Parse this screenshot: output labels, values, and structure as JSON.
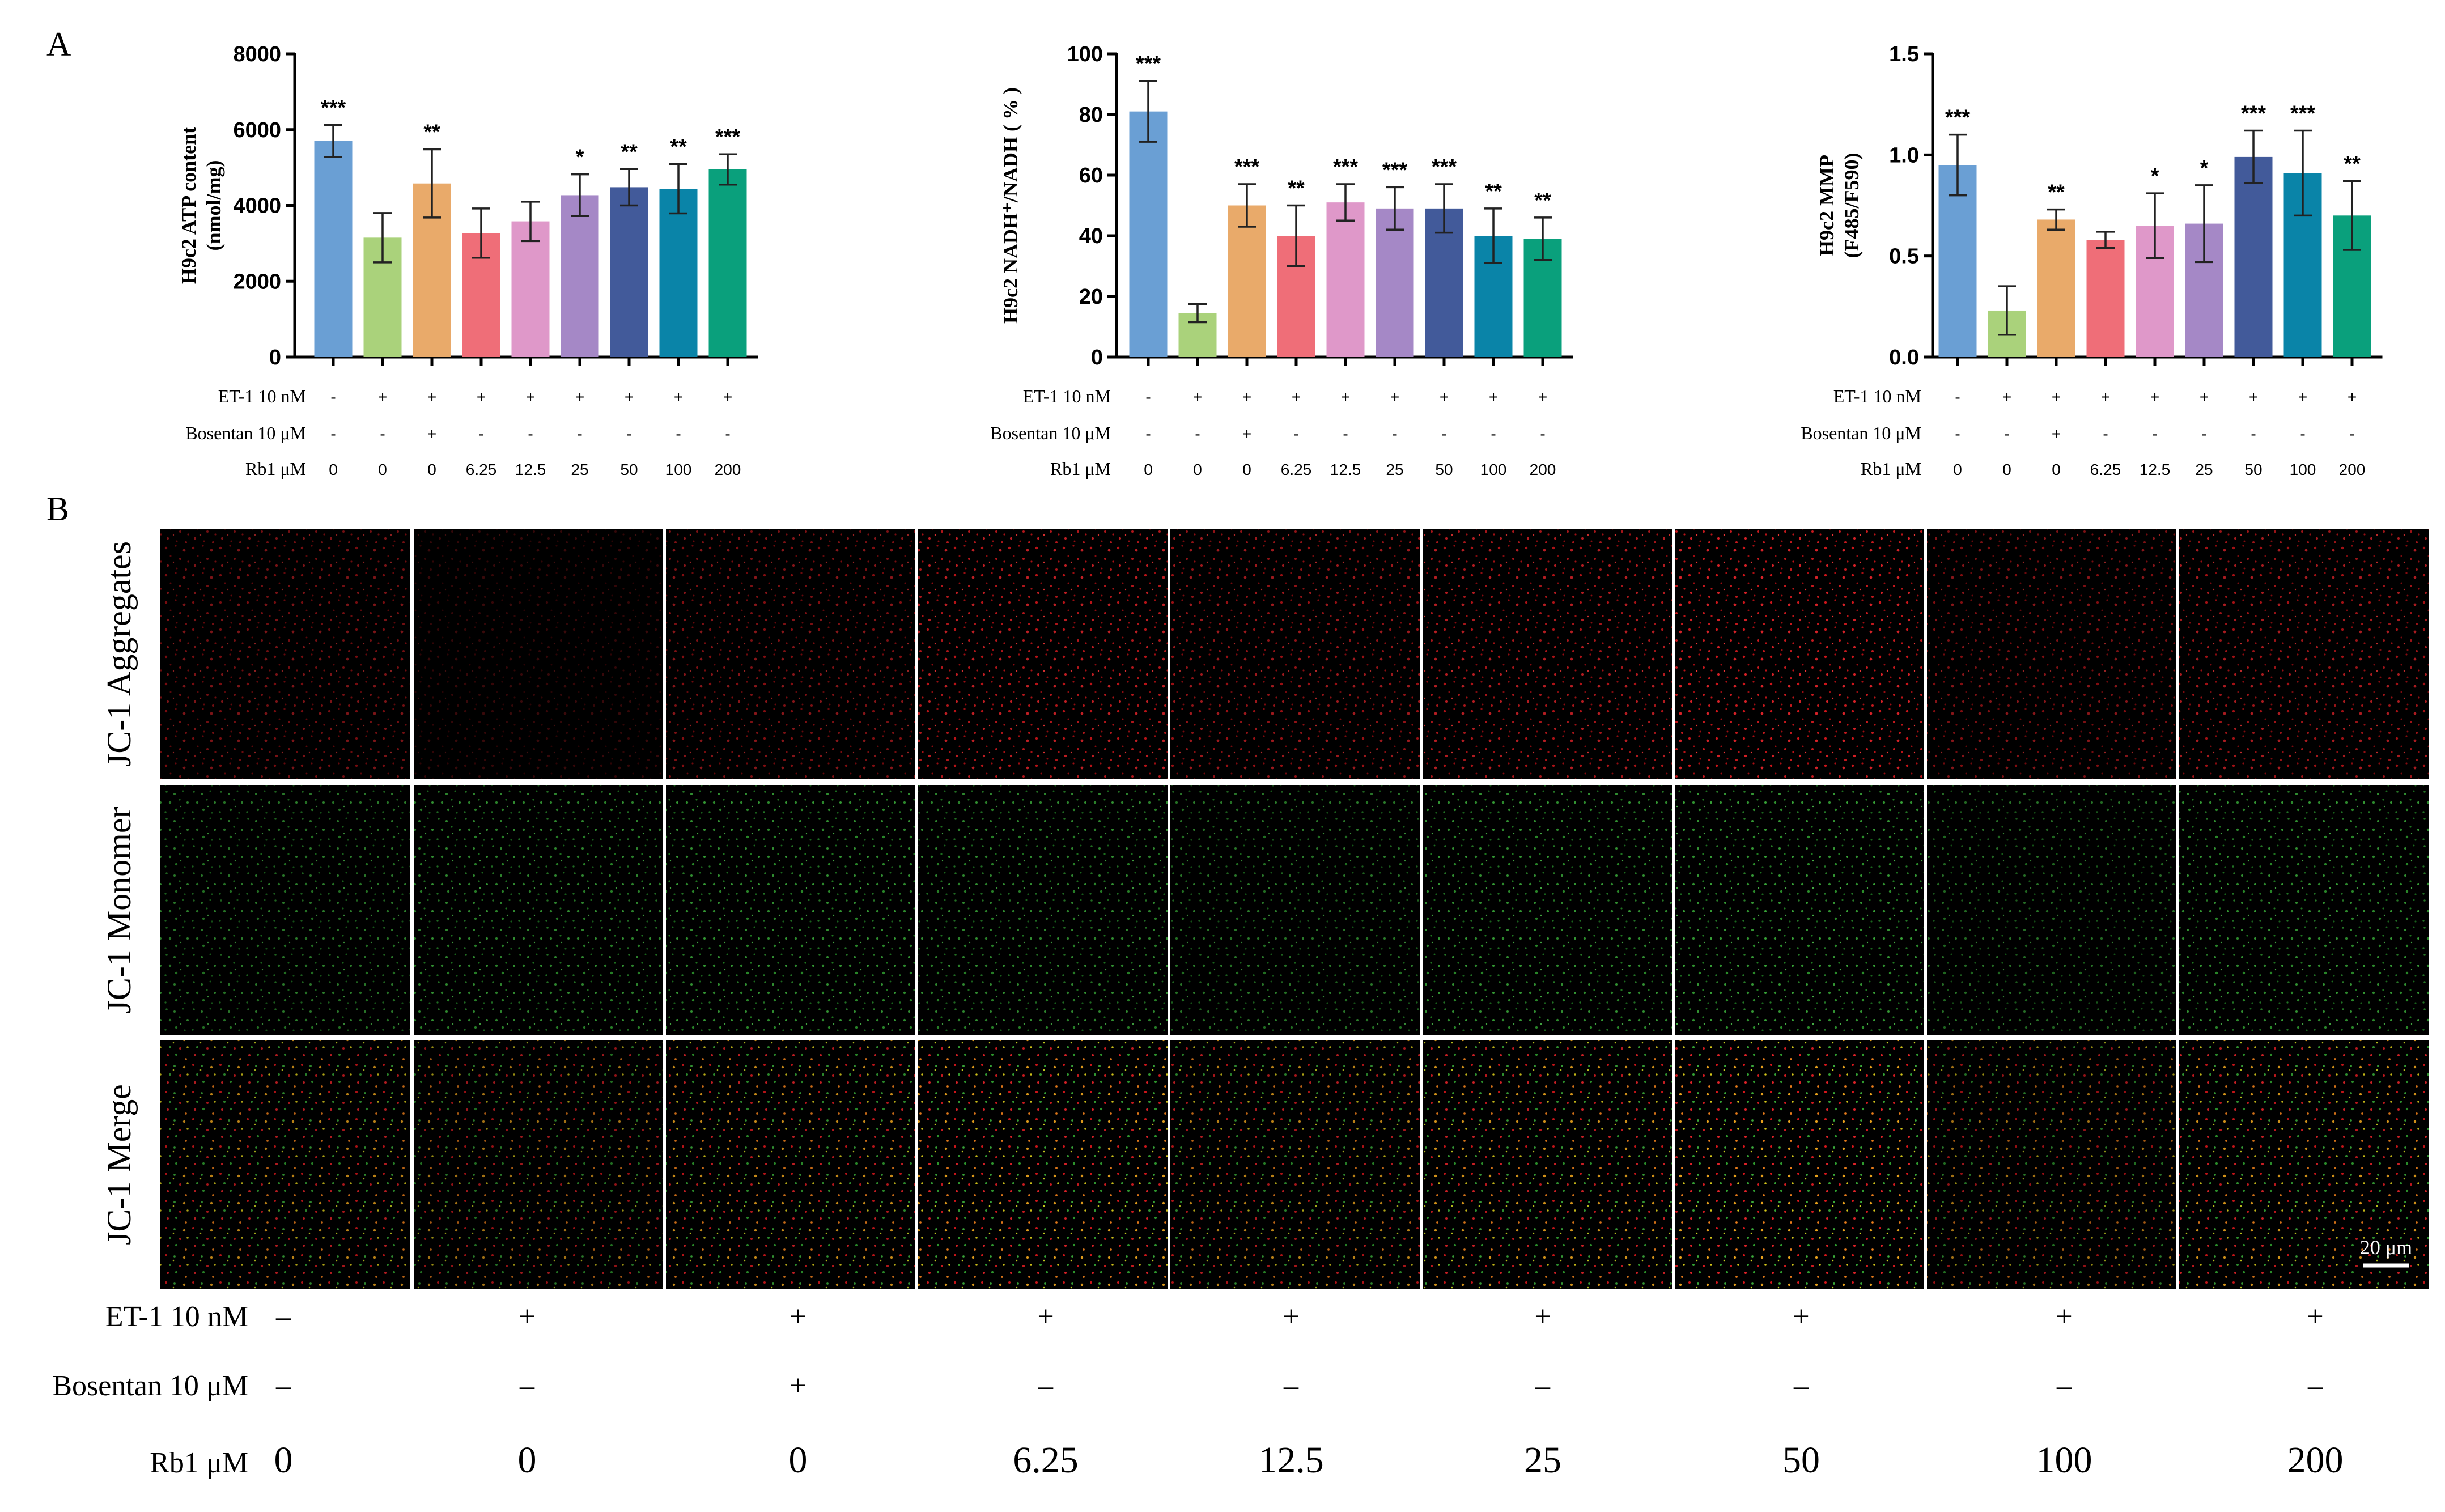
{
  "panel_labels": {
    "a": "A",
    "b": "B"
  },
  "colors": [
    "#6a9fd4",
    "#aad27b",
    "#e9aa6a",
    "#ef6e78",
    "#df98c9",
    "#a588c6",
    "#425a9a",
    "#0a84a8",
    "#0aa07c"
  ],
  "treatments": {
    "et1": {
      "label": "ET-1 10 nM",
      "values": [
        "-",
        "+",
        "+",
        "+",
        "+",
        "+",
        "+",
        "+",
        "+"
      ]
    },
    "bosentan": {
      "label": "Bosentan 10 μM",
      "values": [
        "-",
        "-",
        "+",
        "-",
        "-",
        "-",
        "-",
        "-",
        "-"
      ]
    },
    "rb1": {
      "label": "Rb1 μM",
      "values": [
        "0",
        "0",
        "0",
        "6.25",
        "12.5",
        "25",
        "50",
        "100",
        "200"
      ]
    }
  },
  "chart_data": [
    {
      "type": "bar",
      "ylabel": "H9c2 ATP content",
      "ylabel2": "(nmol/mg)",
      "ylim": [
        0,
        8000
      ],
      "yticks": [
        "0",
        "2000",
        "4000",
        "6000",
        "8000"
      ],
      "values": [
        5700,
        3150,
        4580,
        3270,
        3580,
        4270,
        4480,
        4440,
        4950
      ],
      "errors": [
        420,
        650,
        900,
        650,
        520,
        550,
        480,
        650,
        400
      ],
      "significance": [
        "***",
        "",
        "**",
        "",
        "",
        "*",
        "**",
        "**",
        "***"
      ]
    },
    {
      "type": "bar",
      "ylabel": "H9c2 NADH⁺/NADH ( % )",
      "ylim": [
        0,
        100
      ],
      "yticks": [
        "0",
        "20",
        "40",
        "60",
        "80",
        "100"
      ],
      "values": [
        81,
        14.5,
        50,
        40,
        51,
        49,
        49,
        40,
        39
      ],
      "errors": [
        10,
        3,
        7,
        10,
        6,
        7,
        8,
        9,
        7
      ],
      "significance": [
        "***",
        "",
        "***",
        "**",
        "***",
        "***",
        "***",
        "**",
        "**"
      ]
    },
    {
      "type": "bar",
      "ylabel": "H9c2 MMP",
      "ylabel2": "(F485/F590)",
      "ylim": [
        0,
        1.5
      ],
      "yticks": [
        "0.0",
        "0.5",
        "1.0",
        "1.5"
      ],
      "values": [
        0.95,
        0.23,
        0.68,
        0.58,
        0.65,
        0.66,
        0.99,
        0.91,
        0.7
      ],
      "errors": [
        0.15,
        0.12,
        0.05,
        0.04,
        0.16,
        0.19,
        0.13,
        0.21,
        0.17
      ],
      "significance": [
        "***",
        "",
        "**",
        "",
        "*",
        "*",
        "***",
        "***",
        "**"
      ]
    }
  ],
  "micrographs": {
    "rows": [
      "JC-1 Aggregates",
      "JC-1 Monomer",
      "JC-1 Merge"
    ],
    "scale_bar": "20 μm",
    "bottom_labels": {
      "et1": {
        "label": "ET-1 10 nM",
        "values": [
          "–",
          "+",
          "+",
          "+",
          "+",
          "+",
          "+",
          "+",
          "+"
        ]
      },
      "bosentan": {
        "label": "Bosentan 10 μM",
        "values": [
          "–",
          "–",
          "+",
          "–",
          "–",
          "–",
          "–",
          "–",
          "–"
        ]
      },
      "rb1": {
        "label": "Rb1 μM",
        "values": [
          "0",
          "0",
          "0",
          "6.25",
          "12.5",
          "25",
          "50",
          "100",
          "200"
        ]
      }
    }
  }
}
